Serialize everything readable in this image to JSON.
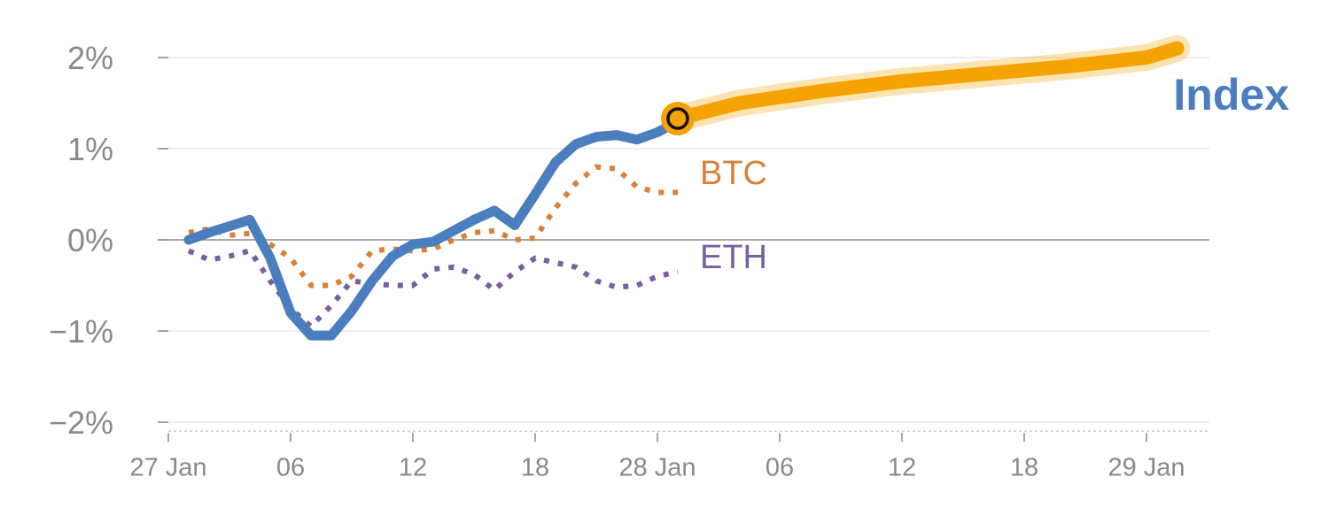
{
  "chart_data": {
    "type": "line",
    "x_ticks": [
      "27 Jan",
      "06",
      "12",
      "18",
      "28 Jan",
      "06",
      "12",
      "18",
      "29 Jan"
    ],
    "x_tick_hours": [
      0,
      6,
      12,
      18,
      24,
      30,
      36,
      42,
      48
    ],
    "y_ticks": [
      "2%",
      "1%",
      "0%",
      "−1%",
      "−2%"
    ],
    "y_tick_values": [
      2,
      1,
      0,
      -1,
      -2
    ],
    "xlim": [
      0,
      51
    ],
    "ylim": [
      -2.1,
      2.2
    ],
    "grid": true,
    "series": [
      {
        "name": "BTC",
        "style": "dotted",
        "color": "#d9803a",
        "x": [
          1,
          2,
          3,
          4,
          5,
          6,
          7,
          8,
          9,
          10,
          11,
          12,
          13,
          14,
          15,
          16,
          17,
          18,
          19,
          20,
          21,
          22,
          23,
          24,
          25
        ],
        "y": [
          0.08,
          0.12,
          0.05,
          0.07,
          -0.05,
          -0.2,
          -0.5,
          -0.5,
          -0.4,
          -0.12,
          -0.1,
          -0.12,
          -0.1,
          0.0,
          0.08,
          0.1,
          0.0,
          0.02,
          0.35,
          0.62,
          0.8,
          0.78,
          0.58,
          0.52,
          0.52
        ]
      },
      {
        "name": "ETH",
        "style": "dotted",
        "color": "#7b5ea1",
        "x": [
          1,
          2,
          3,
          4,
          5,
          6,
          7,
          8,
          9,
          10,
          11,
          12,
          13,
          14,
          15,
          16,
          17,
          18,
          19,
          20,
          21,
          22,
          23,
          24,
          25
        ],
        "y": [
          -0.12,
          -0.22,
          -0.18,
          -0.12,
          -0.45,
          -0.75,
          -0.95,
          -0.72,
          -0.45,
          -0.48,
          -0.5,
          -0.5,
          -0.32,
          -0.3,
          -0.38,
          -0.55,
          -0.35,
          -0.2,
          -0.25,
          -0.3,
          -0.45,
          -0.52,
          -0.5,
          -0.4,
          -0.35
        ]
      },
      {
        "name": "Index",
        "style": "solid",
        "color": "#4a7ebf",
        "x": [
          1,
          2,
          3,
          4,
          5,
          6,
          7,
          8,
          9,
          10,
          11,
          12,
          13,
          14,
          15,
          16,
          17,
          18,
          19,
          20,
          21,
          22,
          23,
          24,
          25
        ],
        "y": [
          0.0,
          0.08,
          0.15,
          0.22,
          -0.2,
          -0.8,
          -1.05,
          -1.05,
          -0.78,
          -0.45,
          -0.18,
          -0.05,
          -0.02,
          0.1,
          0.22,
          0.32,
          0.16,
          0.5,
          0.85,
          1.05,
          1.13,
          1.15,
          1.1,
          1.18,
          1.3
        ]
      }
    ],
    "forecast": {
      "color": "#f5a300",
      "x": [
        25,
        28,
        32,
        36,
        40,
        44,
        48,
        49.5
      ],
      "y": [
        1.33,
        1.5,
        1.63,
        1.74,
        1.82,
        1.9,
        2.0,
        2.1
      ]
    },
    "marker": {
      "x": 25,
      "y": 1.33
    },
    "labels": {
      "btc": "BTC",
      "eth": "ETH",
      "index": "Index"
    }
  }
}
